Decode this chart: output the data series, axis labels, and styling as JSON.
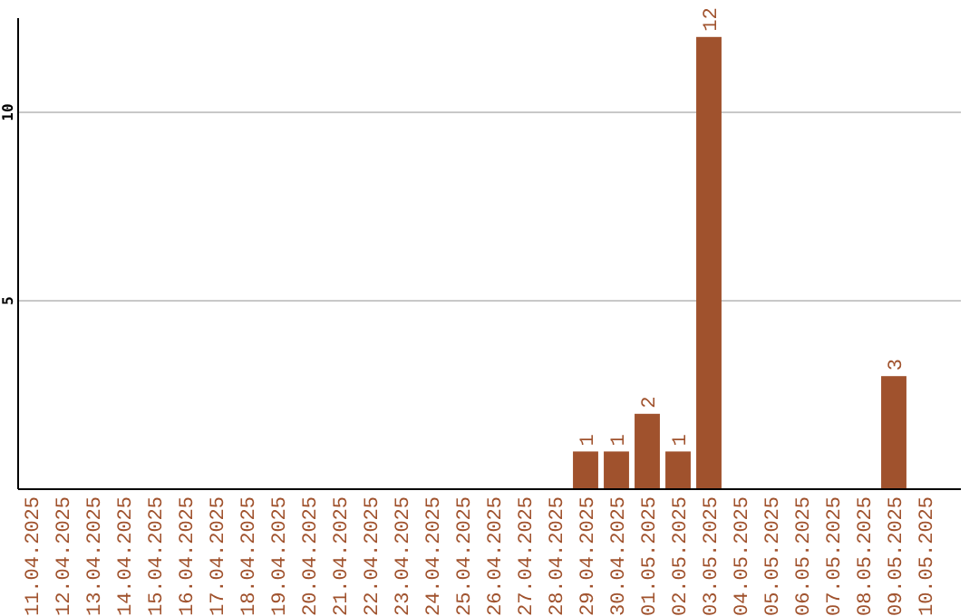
{
  "chart_data": {
    "type": "bar",
    "categories": [
      "11.04.2025",
      "12.04.2025",
      "13.04.2025",
      "14.04.2025",
      "15.04.2025",
      "16.04.2025",
      "17.04.2025",
      "18.04.2025",
      "19.04.2025",
      "20.04.2025",
      "21.04.2025",
      "22.04.2025",
      "23.04.2025",
      "24.04.2025",
      "25.04.2025",
      "26.04.2025",
      "27.04.2025",
      "28.04.2025",
      "29.04.2025",
      "30.04.2025",
      "01.05.2025",
      "02.05.2025",
      "03.05.2025",
      "04.05.2025",
      "05.05.2025",
      "06.05.2025",
      "07.05.2025",
      "08.05.2025",
      "09.05.2025",
      "10.05.2025"
    ],
    "values": [
      0,
      0,
      0,
      0,
      0,
      0,
      0,
      0,
      0,
      0,
      0,
      0,
      0,
      0,
      0,
      0,
      0,
      0,
      1,
      1,
      2,
      1,
      12,
      0,
      0,
      0,
      0,
      0,
      3,
      0
    ],
    "value_labels": [
      null,
      null,
      null,
      null,
      null,
      null,
      null,
      null,
      null,
      null,
      null,
      null,
      null,
      null,
      null,
      null,
      null,
      null,
      "1",
      "1",
      "2",
      "1",
      "12",
      null,
      null,
      null,
      null,
      null,
      "3",
      null
    ],
    "color": "#a0522d",
    "ylim": [
      0,
      12.5
    ],
    "yticks": [
      5,
      10
    ],
    "grid": "y"
  }
}
